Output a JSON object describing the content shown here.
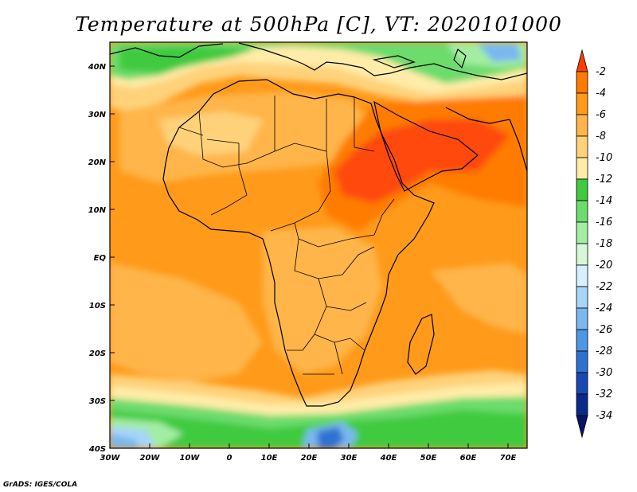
{
  "title": "Temperature at 500hPa [C], VT: 2020101000",
  "credit": "GrADS: IGES/COLA",
  "map": {
    "lat_labels": [
      "40N",
      "30N",
      "20N",
      "10N",
      "EQ",
      "10S",
      "20S",
      "30S",
      "40S"
    ],
    "lon_labels": [
      "30W",
      "20W",
      "10W",
      "0",
      "10E",
      "20E",
      "30E",
      "40E",
      "50E",
      "60E",
      "70E"
    ]
  },
  "colorbar": {
    "labels": [
      "-2",
      "-4",
      "-6",
      "-8",
      "-10",
      "-12",
      "-14",
      "-16",
      "-18",
      "-20",
      "-22",
      "-24",
      "-26",
      "-28",
      "-30",
      "-32",
      "-34"
    ],
    "colors": [
      "#ff3f00",
      "#ff7b00",
      "#ff9a1a",
      "#ffb54a",
      "#ffd27a",
      "#ffeca8",
      "#3fca3f",
      "#6ddc6d",
      "#a3eda3",
      "#d6f8d6",
      "#d6f0ff",
      "#a6d6f7",
      "#7ab8ee",
      "#4f97e2",
      "#2e72d1",
      "#1848b0",
      "#0a2a8a",
      "#081666"
    ]
  },
  "colors": {
    "very_warm": "#ff4a0f",
    "warm": "#ff7b00",
    "orange": "#ff9a1a",
    "light_orange": "#ffb54a",
    "pale": "#ffd27a",
    "cream": "#ffeca8",
    "green": "#3fca3f",
    "light_green": "#6ddc6d",
    "pale_green": "#a3eda3",
    "blue": "#4f97e2",
    "light_blue": "#a6d6f7"
  }
}
